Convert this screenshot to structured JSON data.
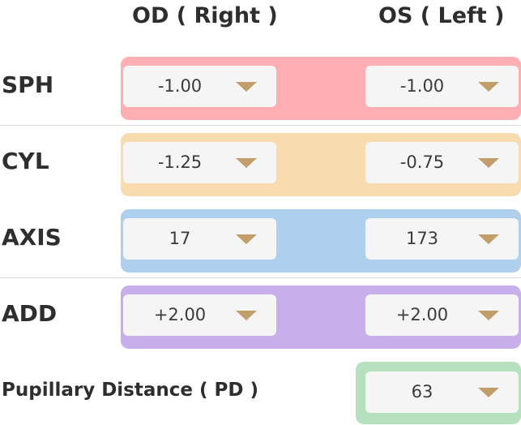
{
  "headers": {
    "od": "OD ( Right )",
    "os": "OS ( Left )"
  },
  "colors": {
    "sph": "#ffaeb1",
    "cyl": "#f9dbb0",
    "axis": "#aecfed",
    "add": "#c6afeb",
    "pd": "#b7e1bd",
    "caret": "#c29f6a"
  },
  "rows": [
    {
      "label": "SPH",
      "od": "-1.00",
      "os": "-1.00"
    },
    {
      "label": "CYL",
      "od": "-1.25",
      "os": "-0.75"
    },
    {
      "label": "AXIS",
      "od": "17",
      "os": "173"
    },
    {
      "label": "ADD",
      "od": "+2.00",
      "os": "+2.00"
    }
  ],
  "pd": {
    "label": "Pupillary Distance ( PD )",
    "value": "63"
  }
}
